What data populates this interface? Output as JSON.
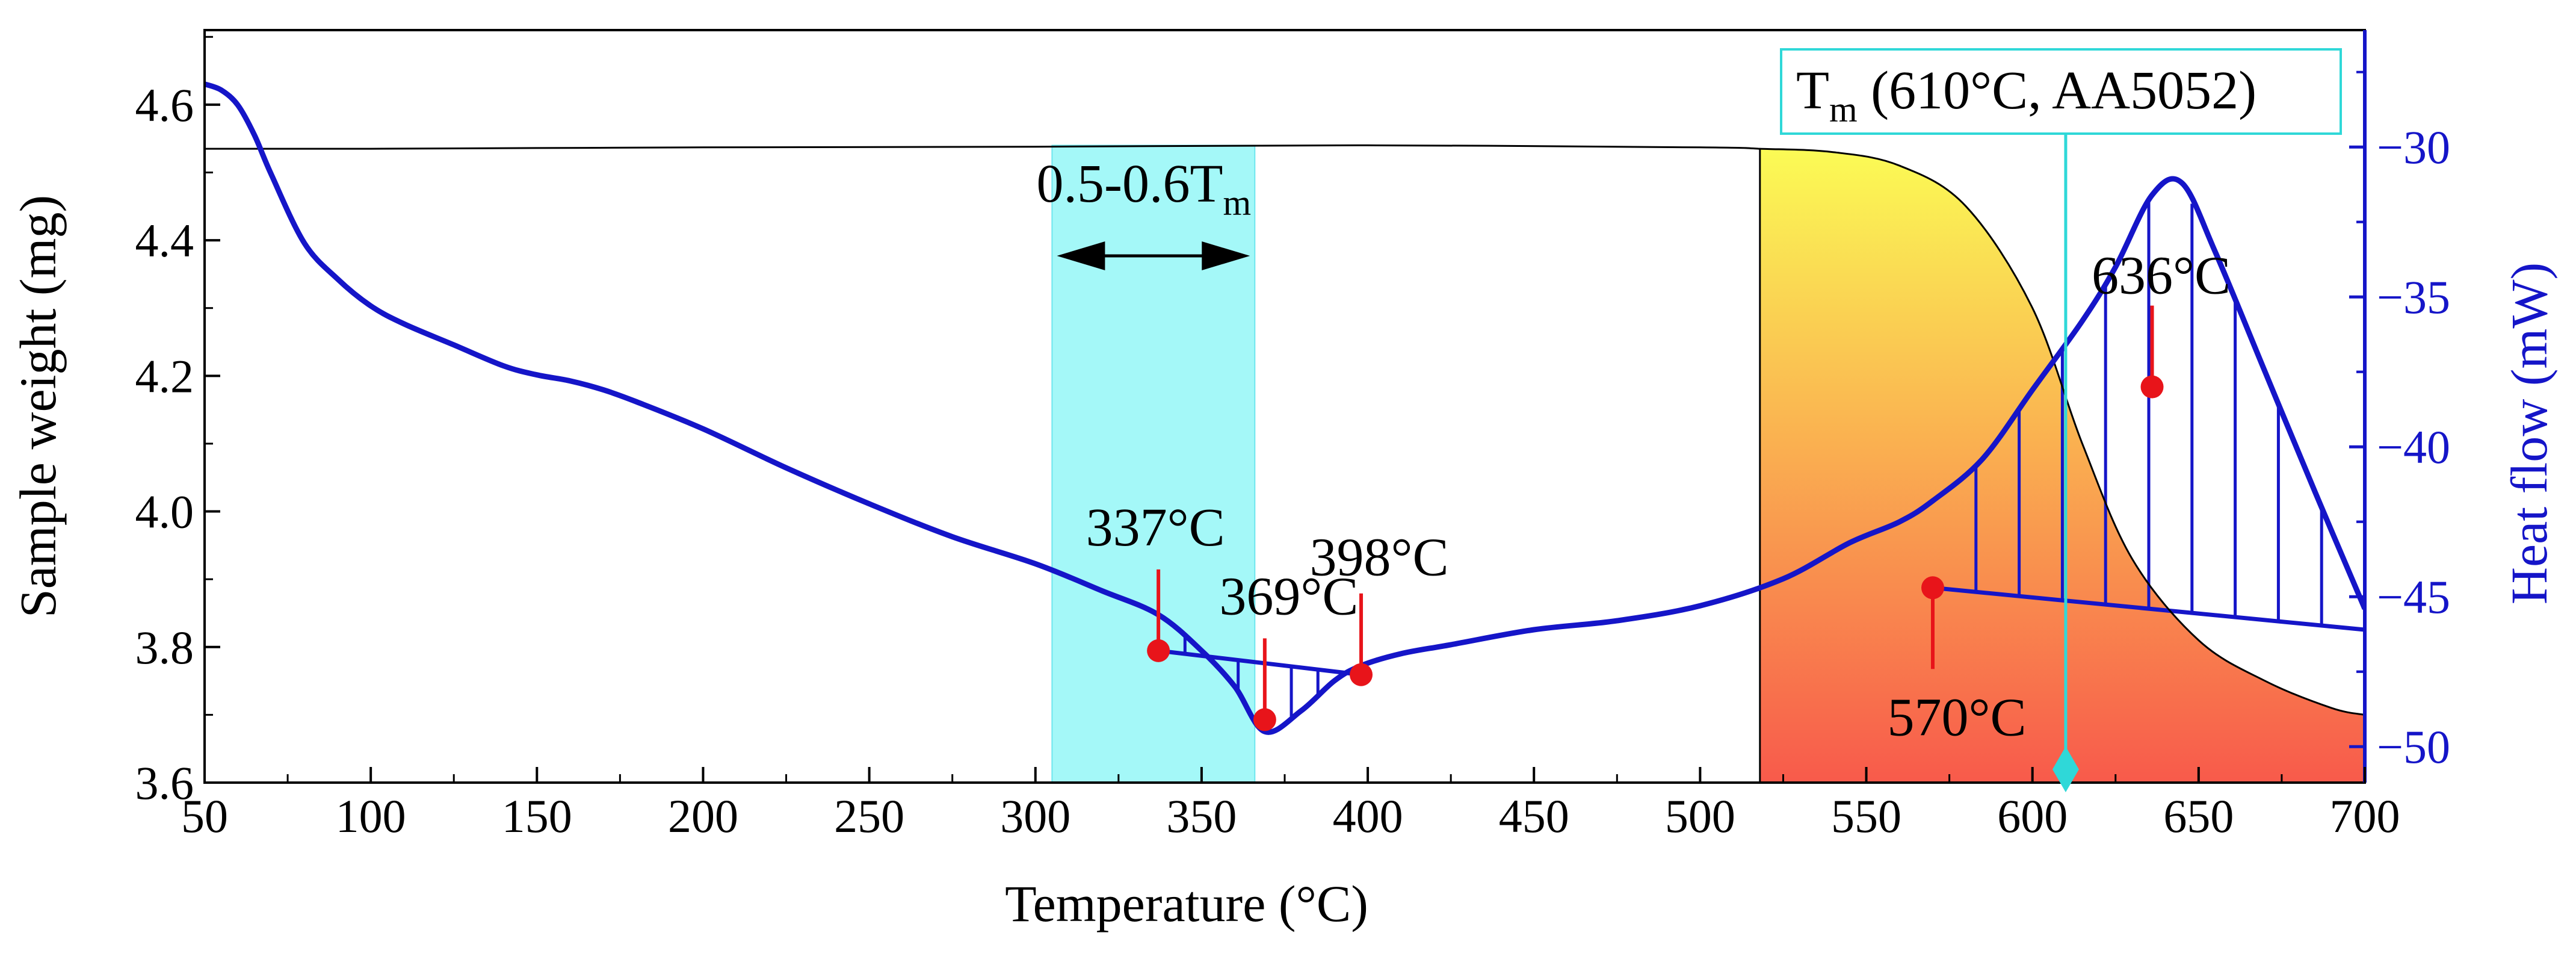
{
  "chart_data": {
    "type": "line",
    "title": "",
    "xlabel": "Temperature (°C)",
    "ylabel_left": "Sample weight (mg)",
    "ylabel_right": "Heat flow (mW)",
    "xlim": [
      50,
      700
    ],
    "ylim_left": [
      3.6,
      4.71
    ],
    "ylim_right": [
      -51.2,
      -26.1
    ],
    "x_ticks": [
      50,
      100,
      150,
      200,
      250,
      300,
      350,
      400,
      450,
      500,
      550,
      600,
      650,
      700
    ],
    "x_tick_labels": [
      "50",
      "100",
      "150",
      "200",
      "250",
      "300",
      "350",
      "400",
      "450",
      "500",
      "550",
      "600",
      "650",
      "700"
    ],
    "y_left_ticks": [
      3.6,
      3.8,
      4.0,
      4.2,
      4.4,
      4.6
    ],
    "y_left_tick_labels": [
      "3.6",
      "3.8",
      "4.0",
      "4.2",
      "4.4",
      "4.6"
    ],
    "y_right_ticks": [
      -50,
      -45,
      -40,
      -35,
      -30
    ],
    "y_right_tick_labels": [
      "−50",
      "−45",
      "−40",
      "−35",
      "−30"
    ],
    "colors": {
      "heat_flow": "#1515c8",
      "weight": "#000000",
      "band": "#a4f8f8",
      "band_edge": "#6ee6ee",
      "marker": "#e8141a",
      "gradient_top": "#fbfb55",
      "gradient_bottom": "#f85a4b",
      "tm_line": "#2fd8d8"
    },
    "series": [
      {
        "name": "Sample weight",
        "axis": "left",
        "x": [
          50,
          100,
          200,
          300,
          400,
          500,
          518,
          540,
          560,
          580,
          600,
          615,
          630,
          650,
          670,
          690,
          700
        ],
        "y": [
          4.535,
          4.535,
          4.537,
          4.538,
          4.54,
          4.537,
          4.535,
          4.53,
          4.51,
          4.45,
          4.3,
          4.1,
          3.93,
          3.81,
          3.75,
          3.71,
          3.7
        ]
      },
      {
        "name": "Heat flow",
        "axis": "right",
        "x": [
          50,
          55,
          60,
          65,
          70,
          80,
          90,
          100,
          110,
          125,
          140,
          150,
          160,
          170,
          180,
          200,
          225,
          250,
          275,
          300,
          320,
          337,
          350,
          360,
          369,
          380,
          390,
          398,
          410,
          425,
          450,
          475,
          500,
          525,
          545,
          560,
          570,
          585,
          600,
          615,
          625,
          636,
          645,
          655,
          670,
          685,
          700
        ],
        "y": [
          -27.9,
          -28.1,
          -28.6,
          -29.6,
          -30.9,
          -33.2,
          -34.4,
          -35.3,
          -35.9,
          -36.6,
          -37.3,
          -37.6,
          -37.8,
          -38.1,
          -38.5,
          -39.4,
          -40.7,
          -41.9,
          -43.0,
          -43.9,
          -44.8,
          -45.6,
          -46.8,
          -48.0,
          -49.5,
          -48.8,
          -47.8,
          -47.3,
          -46.9,
          -46.6,
          -46.1,
          -45.8,
          -45.3,
          -44.4,
          -43.2,
          -42.5,
          -41.8,
          -40.4,
          -38.1,
          -35.8,
          -34.0,
          -31.6,
          -31.2,
          -33.5,
          -37.5,
          -41.5,
          -45.4
        ]
      }
    ],
    "band": {
      "x_start": 305,
      "x_end": 366,
      "label": "0.5-0.6T",
      "label_sub": "m"
    },
    "gradient_fill_x_start": 518,
    "melting_line": {
      "x": 610,
      "label_main": "T",
      "label_sub": "m",
      "label_rest": " (610°C, AA5052)"
    },
    "peaks": [
      {
        "label": "337°C",
        "x": 337,
        "hf": -46.8,
        "label_dir": "up"
      },
      {
        "label": "369°C",
        "x": 369,
        "hf": -49.1,
        "label_dir": "up"
      },
      {
        "label": "398°C",
        "x": 398,
        "hf": -47.6,
        "label_dir": "up"
      },
      {
        "label": "570°C",
        "x": 570,
        "hf": -44.7,
        "label_dir": "down"
      },
      {
        "label": "636°C",
        "x": 636,
        "hf": -38.0,
        "label_dir": "up"
      }
    ],
    "hatch_regions": [
      {
        "x_start": 337,
        "x_end": 398,
        "baseline": [
          -46.8,
          -47.6
        ],
        "step": 8
      },
      {
        "x_start": 570,
        "x_end": 700,
        "baseline": [
          -44.7,
          -46.1
        ],
        "step": 13
      }
    ]
  }
}
